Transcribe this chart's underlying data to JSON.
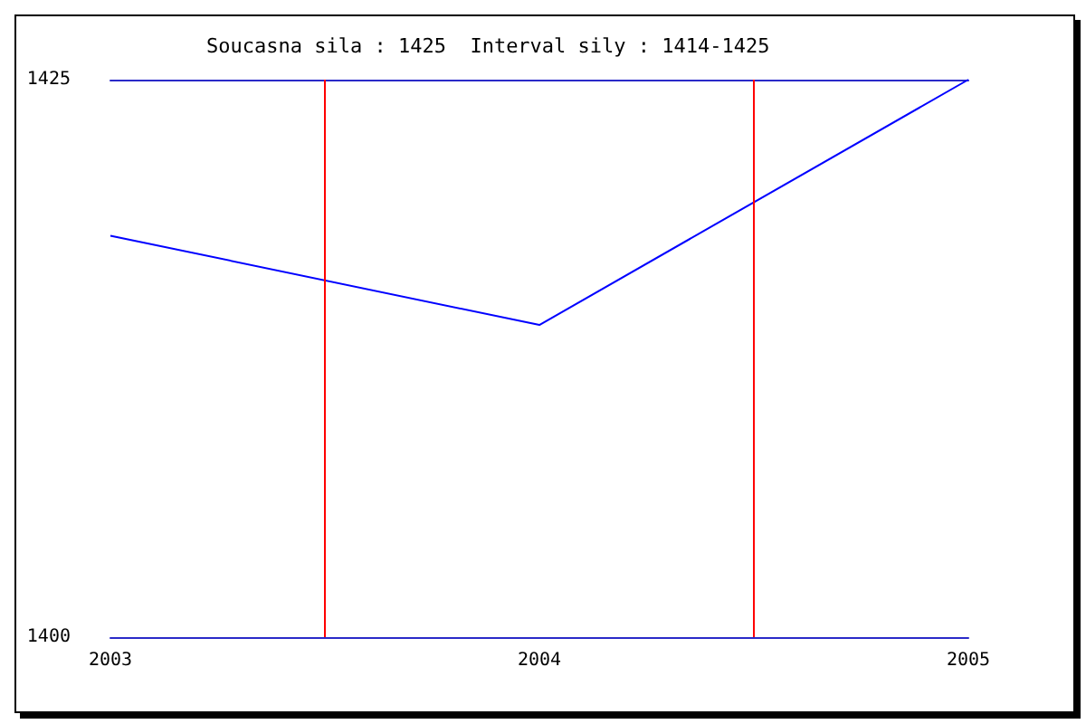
{
  "chart_data": {
    "type": "line",
    "title": "Soucasna sila : 1425  Interval sily : 1414-1425",
    "x": [
      2003,
      2004,
      2005
    ],
    "series": [
      {
        "color": "#0000ff",
        "values": [
          1418,
          1414,
          1425
        ]
      }
    ],
    "xlim": [
      2003,
      2005
    ],
    "xticks": [
      2003,
      2004,
      2005
    ],
    "ylim": [
      1400,
      1425
    ],
    "yticks": [
      1400,
      1425
    ],
    "grid": false,
    "marker": "none",
    "line_style": "solid",
    "ref_lines": [
      {
        "axis": "x",
        "value": 2003.5,
        "color": "#ff0000"
      },
      {
        "axis": "x",
        "value": 2004.5,
        "color": "#ff0000"
      }
    ]
  }
}
